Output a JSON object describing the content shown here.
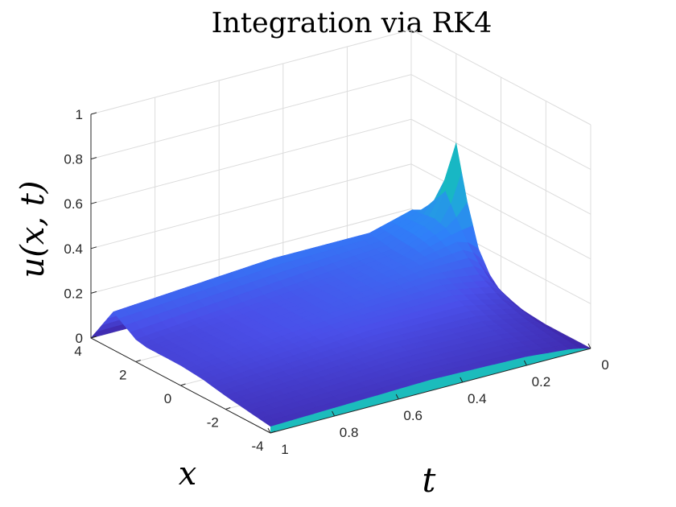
{
  "chart_data": {
    "type": "surface",
    "title": "Integration via RK4",
    "xlabel": "x",
    "ylabel": "t",
    "zlabel": "u(x, t)",
    "xlim": [
      -4,
      4
    ],
    "tlim": [
      0,
      1
    ],
    "zlim": [
      0,
      1
    ],
    "x_ticks": [
      "4",
      "2",
      "0",
      "-2",
      "-4"
    ],
    "t_ticks": [
      "0",
      "0.2",
      "0.4",
      "0.6",
      "0.8",
      "1"
    ],
    "z_ticks": [
      "0",
      "0.2",
      "0.4",
      "0.6",
      "0.8",
      "1"
    ],
    "colormap": "parula",
    "colormap_colors": [
      "#3e26a8",
      "#4a4fe9",
      "#2f80f9",
      "#20a6dc",
      "#14c0b8",
      "#5ccb7e",
      "#c6be3c",
      "#f9d42f",
      "#f9fb15"
    ],
    "boundary_color": "#1bbcbc",
    "profiles": [
      {
        "t": 0.0,
        "x": [
          -4,
          -2,
          -1,
          0,
          0.5,
          1,
          1.5,
          2,
          3,
          4
        ],
        "u": [
          0.0,
          0.0,
          0.01,
          0.04,
          0.09,
          0.18,
          0.36,
          0.6,
          0.22,
          0.0
        ]
      },
      {
        "t": 0.05,
        "x": [
          -4,
          -2,
          -1,
          0,
          0.5,
          1,
          1.5,
          2,
          3,
          4
        ],
        "u": [
          0.02,
          0.05,
          0.08,
          0.14,
          0.19,
          0.24,
          0.28,
          0.3,
          0.28,
          0.0
        ]
      },
      {
        "t": 0.2,
        "x": [
          -4,
          -2,
          -1,
          0,
          0.5,
          1,
          1.5,
          2,
          3,
          4
        ],
        "u": [
          0.04,
          0.09,
          0.13,
          0.17,
          0.19,
          0.2,
          0.2,
          0.2,
          0.22,
          0.0
        ]
      },
      {
        "t": 0.5,
        "x": [
          -4,
          -2,
          -1,
          0,
          0.5,
          1,
          1.5,
          2,
          3,
          4
        ],
        "u": [
          0.05,
          0.1,
          0.13,
          0.15,
          0.15,
          0.15,
          0.15,
          0.16,
          0.22,
          0.0
        ]
      },
      {
        "t": 1.0,
        "x": [
          -4,
          -2,
          -1,
          0,
          0.5,
          1,
          1.5,
          2,
          3,
          4
        ],
        "u": [
          0.03,
          0.06,
          0.08,
          0.09,
          0.09,
          0.09,
          0.09,
          0.1,
          0.17,
          0.0
        ]
      }
    ]
  }
}
